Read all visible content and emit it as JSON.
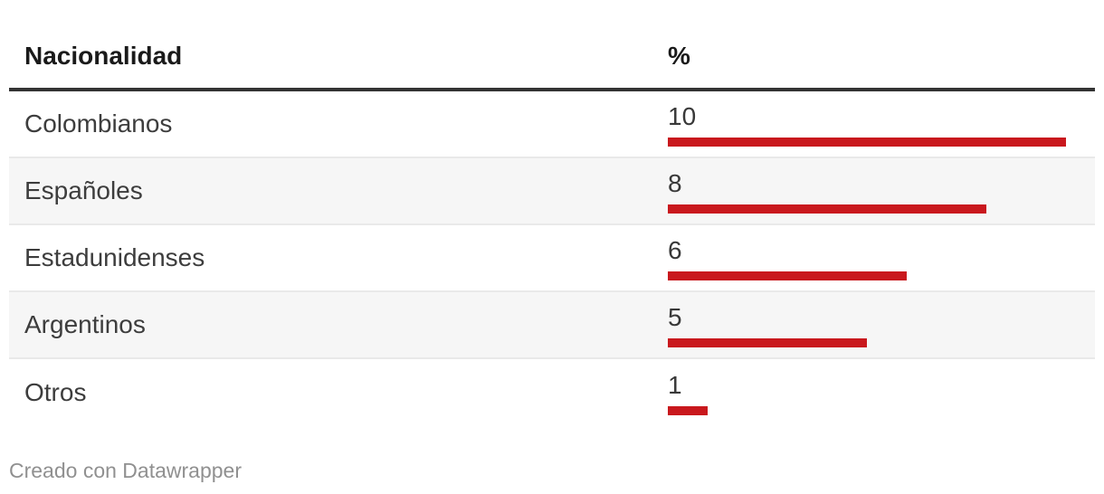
{
  "header": {
    "col_nationality": "Nacionalidad",
    "col_percent": "%"
  },
  "rows": [
    {
      "label": "Colombianos",
      "value": 10
    },
    {
      "label": "Españoles",
      "value": 8
    },
    {
      "label": "Estadunidenses",
      "value": 6
    },
    {
      "label": "Argentinos",
      "value": 5
    },
    {
      "label": "Otros",
      "value": 1
    }
  ],
  "footer": {
    "credit_text": "Creado con Datawrapper"
  },
  "colors": {
    "bar_red": "#c9181d",
    "header_rule": "#333333",
    "row_alt_bg": "#f6f6f6",
    "row_divider": "#e9e9e9",
    "header_text": "#1a1a1a",
    "body_text": "#3d3d3d",
    "credit_text": "#909090"
  },
  "chart_data": {
    "type": "bar",
    "orientation": "horizontal",
    "title": "",
    "categories": [
      "Colombianos",
      "Españoles",
      "Estadunidenses",
      "Argentinos",
      "Otros"
    ],
    "values": [
      10,
      8,
      6,
      5,
      1
    ],
    "xlabel": "Nacionalidad",
    "ylabel": "%",
    "xlim": [
      0,
      10
    ],
    "grid": false,
    "legend": false,
    "value_labels": true,
    "bar_color": "#c9181d",
    "credit": "Creado con Datawrapper"
  }
}
